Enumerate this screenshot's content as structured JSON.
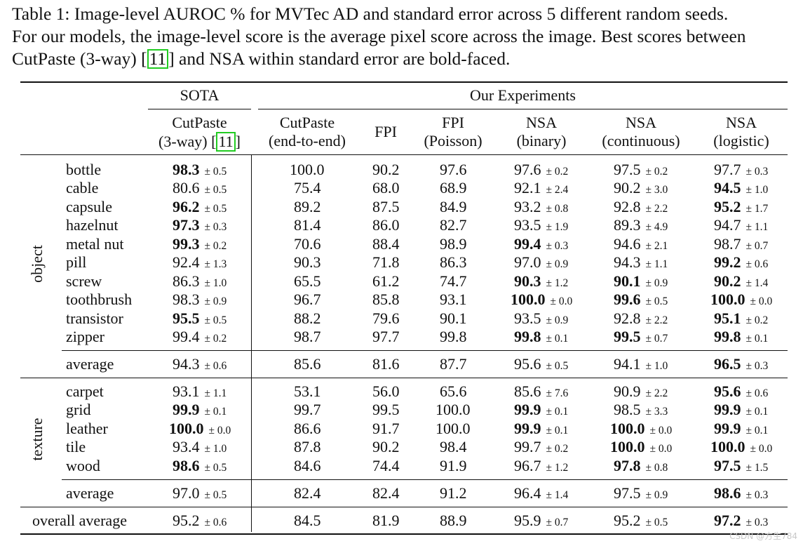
{
  "caption": {
    "line1": "Table 1: Image-level AUROC % for MVTec AD and standard error across 5 different random seeds.",
    "line2": "For our models, the image-level score is the average pixel score across the image. Best scores between",
    "line3_pre": "CutPaste (3-way) [",
    "line3_cite": "11",
    "line3_post": "] and NSA within standard error are bold-faced."
  },
  "header": {
    "group_sota": "SOTA",
    "group_ours": "Our Experiments",
    "columns": [
      {
        "line1": "CutPaste",
        "line2_pre": "(3-way) [",
        "cite": "11",
        "line2_post": "]"
      },
      {
        "line1": "CutPaste",
        "line2": "(end-to-end)"
      },
      {
        "line1": "FPI",
        "line2": ""
      },
      {
        "line1": "FPI",
        "line2": "(Poisson)"
      },
      {
        "line1": "NSA",
        "line2": "(binary)"
      },
      {
        "line1": "NSA",
        "line2": "(continuous)"
      },
      {
        "line1": "NSA",
        "line2": "(logistic)"
      }
    ]
  },
  "sections": {
    "object_label": "object",
    "texture_label": "texture"
  },
  "rows": [
    {
      "name": "bottle",
      "cells": [
        [
          "98.3",
          "± 0.5",
          true
        ],
        [
          "100.0",
          "",
          false
        ],
        [
          "90.2",
          "",
          false
        ],
        [
          "97.6",
          "",
          false
        ],
        [
          "97.6",
          "± 0.2",
          false
        ],
        [
          "97.5",
          "± 0.2",
          false
        ],
        [
          "97.7",
          "± 0.3",
          false
        ]
      ]
    },
    {
      "name": "cable",
      "cells": [
        [
          "80.6",
          "± 0.5",
          false
        ],
        [
          "75.4",
          "",
          false
        ],
        [
          "68.0",
          "",
          false
        ],
        [
          "68.9",
          "",
          false
        ],
        [
          "92.1",
          "± 2.4",
          false
        ],
        [
          "90.2",
          "± 3.0",
          false
        ],
        [
          "94.5",
          "± 1.0",
          true
        ]
      ]
    },
    {
      "name": "capsule",
      "cells": [
        [
          "96.2",
          "± 0.5",
          true
        ],
        [
          "89.2",
          "",
          false
        ],
        [
          "87.5",
          "",
          false
        ],
        [
          "84.9",
          "",
          false
        ],
        [
          "93.2",
          "± 0.8",
          false
        ],
        [
          "92.8",
          "± 2.2",
          false
        ],
        [
          "95.2",
          "± 1.7",
          true
        ]
      ]
    },
    {
      "name": "hazelnut",
      "cells": [
        [
          "97.3",
          "± 0.3",
          true
        ],
        [
          "81.4",
          "",
          false
        ],
        [
          "86.0",
          "",
          false
        ],
        [
          "82.7",
          "",
          false
        ],
        [
          "93.5",
          "± 1.9",
          false
        ],
        [
          "89.3",
          "± 4.9",
          false
        ],
        [
          "94.7",
          "± 1.1",
          false
        ]
      ]
    },
    {
      "name": "metal nut",
      "cells": [
        [
          "99.3",
          "± 0.2",
          true
        ],
        [
          "70.6",
          "",
          false
        ],
        [
          "88.4",
          "",
          false
        ],
        [
          "98.9",
          "",
          false
        ],
        [
          "99.4",
          "± 0.3",
          true
        ],
        [
          "94.6",
          "± 2.1",
          false
        ],
        [
          "98.7",
          "± 0.7",
          false
        ]
      ]
    },
    {
      "name": "pill",
      "cells": [
        [
          "92.4",
          "± 1.3",
          false
        ],
        [
          "90.3",
          "",
          false
        ],
        [
          "71.8",
          "",
          false
        ],
        [
          "86.3",
          "",
          false
        ],
        [
          "97.0",
          "± 0.9",
          false
        ],
        [
          "94.3",
          "± 1.1",
          false
        ],
        [
          "99.2",
          "± 0.6",
          true
        ]
      ]
    },
    {
      "name": "screw",
      "cells": [
        [
          "86.3",
          "± 1.0",
          false
        ],
        [
          "65.5",
          "",
          false
        ],
        [
          "61.2",
          "",
          false
        ],
        [
          "74.7",
          "",
          false
        ],
        [
          "90.3",
          "± 1.2",
          true
        ],
        [
          "90.1",
          "± 0.9",
          true
        ],
        [
          "90.2",
          "± 1.4",
          true
        ]
      ]
    },
    {
      "name": "toothbrush",
      "cells": [
        [
          "98.3",
          "± 0.9",
          false
        ],
        [
          "96.7",
          "",
          false
        ],
        [
          "85.8",
          "",
          false
        ],
        [
          "93.1",
          "",
          false
        ],
        [
          "100.0",
          "± 0.0",
          true
        ],
        [
          "99.6",
          "± 0.5",
          true
        ],
        [
          "100.0",
          "± 0.0",
          true
        ]
      ]
    },
    {
      "name": "transistor",
      "cells": [
        [
          "95.5",
          "± 0.5",
          true
        ],
        [
          "88.2",
          "",
          false
        ],
        [
          "79.6",
          "",
          false
        ],
        [
          "90.1",
          "",
          false
        ],
        [
          "93.5",
          "± 0.9",
          false
        ],
        [
          "92.8",
          "± 2.2",
          false
        ],
        [
          "95.1",
          "± 0.2",
          true
        ]
      ]
    },
    {
      "name": "zipper",
      "cells": [
        [
          "99.4",
          "± 0.2",
          false
        ],
        [
          "98.7",
          "",
          false
        ],
        [
          "97.7",
          "",
          false
        ],
        [
          "99.8",
          "",
          false
        ],
        [
          "99.8",
          "± 0.1",
          true
        ],
        [
          "99.5",
          "± 0.7",
          true
        ],
        [
          "99.8",
          "± 0.1",
          true
        ]
      ]
    },
    {
      "name": "average",
      "cells": [
        [
          "94.3",
          "± 0.6",
          false
        ],
        [
          "85.6",
          "",
          false
        ],
        [
          "81.6",
          "",
          false
        ],
        [
          "87.7",
          "",
          false
        ],
        [
          "95.6",
          "± 0.5",
          false
        ],
        [
          "94.1",
          "± 1.0",
          false
        ],
        [
          "96.5",
          "± 0.3",
          true
        ]
      ]
    },
    {
      "name": "carpet",
      "cells": [
        [
          "93.1",
          "± 1.1",
          false
        ],
        [
          "53.1",
          "",
          false
        ],
        [
          "56.0",
          "",
          false
        ],
        [
          "65.6",
          "",
          false
        ],
        [
          "85.6",
          "± 7.6",
          false
        ],
        [
          "90.9",
          "± 2.2",
          false
        ],
        [
          "95.6",
          "± 0.6",
          true
        ]
      ]
    },
    {
      "name": "grid",
      "cells": [
        [
          "99.9",
          "± 0.1",
          true
        ],
        [
          "99.7",
          "",
          false
        ],
        [
          "99.5",
          "",
          false
        ],
        [
          "100.0",
          "",
          false
        ],
        [
          "99.9",
          "± 0.1",
          true
        ],
        [
          "98.5",
          "± 3.3",
          false
        ],
        [
          "99.9",
          "± 0.1",
          true
        ]
      ]
    },
    {
      "name": "leather",
      "cells": [
        [
          "100.0",
          "± 0.0",
          true
        ],
        [
          "86.6",
          "",
          false
        ],
        [
          "91.7",
          "",
          false
        ],
        [
          "100.0",
          "",
          false
        ],
        [
          "99.9",
          "± 0.1",
          true
        ],
        [
          "100.0",
          "± 0.0",
          true
        ],
        [
          "99.9",
          "± 0.1",
          true
        ]
      ]
    },
    {
      "name": "tile",
      "cells": [
        [
          "93.4",
          "± 1.0",
          false
        ],
        [
          "87.8",
          "",
          false
        ],
        [
          "90.2",
          "",
          false
        ],
        [
          "98.4",
          "",
          false
        ],
        [
          "99.7",
          "± 0.2",
          false
        ],
        [
          "100.0",
          "± 0.0",
          true
        ],
        [
          "100.0",
          "± 0.0",
          true
        ]
      ]
    },
    {
      "name": "wood",
      "cells": [
        [
          "98.6",
          "± 0.5",
          true
        ],
        [
          "84.6",
          "",
          false
        ],
        [
          "74.4",
          "",
          false
        ],
        [
          "91.9",
          "",
          false
        ],
        [
          "96.7",
          "± 1.2",
          false
        ],
        [
          "97.8",
          "± 0.8",
          true
        ],
        [
          "97.5",
          "± 1.5",
          true
        ]
      ]
    },
    {
      "name": "average",
      "cells": [
        [
          "97.0",
          "± 0.5",
          false
        ],
        [
          "82.4",
          "",
          false
        ],
        [
          "82.4",
          "",
          false
        ],
        [
          "91.2",
          "",
          false
        ],
        [
          "96.4",
          "± 1.4",
          false
        ],
        [
          "97.5",
          "± 0.9",
          false
        ],
        [
          "98.6",
          "± 0.3",
          true
        ]
      ]
    },
    {
      "name": "overall average",
      "cells": [
        [
          "95.2",
          "± 0.6",
          false
        ],
        [
          "84.5",
          "",
          false
        ],
        [
          "81.9",
          "",
          false
        ],
        [
          "88.9",
          "",
          false
        ],
        [
          "95.9",
          "± 0.7",
          false
        ],
        [
          "95.2",
          "± 0.5",
          false
        ],
        [
          "97.2",
          "± 0.3",
          true
        ]
      ]
    }
  ],
  "watermark": "CSDN @方生784"
}
